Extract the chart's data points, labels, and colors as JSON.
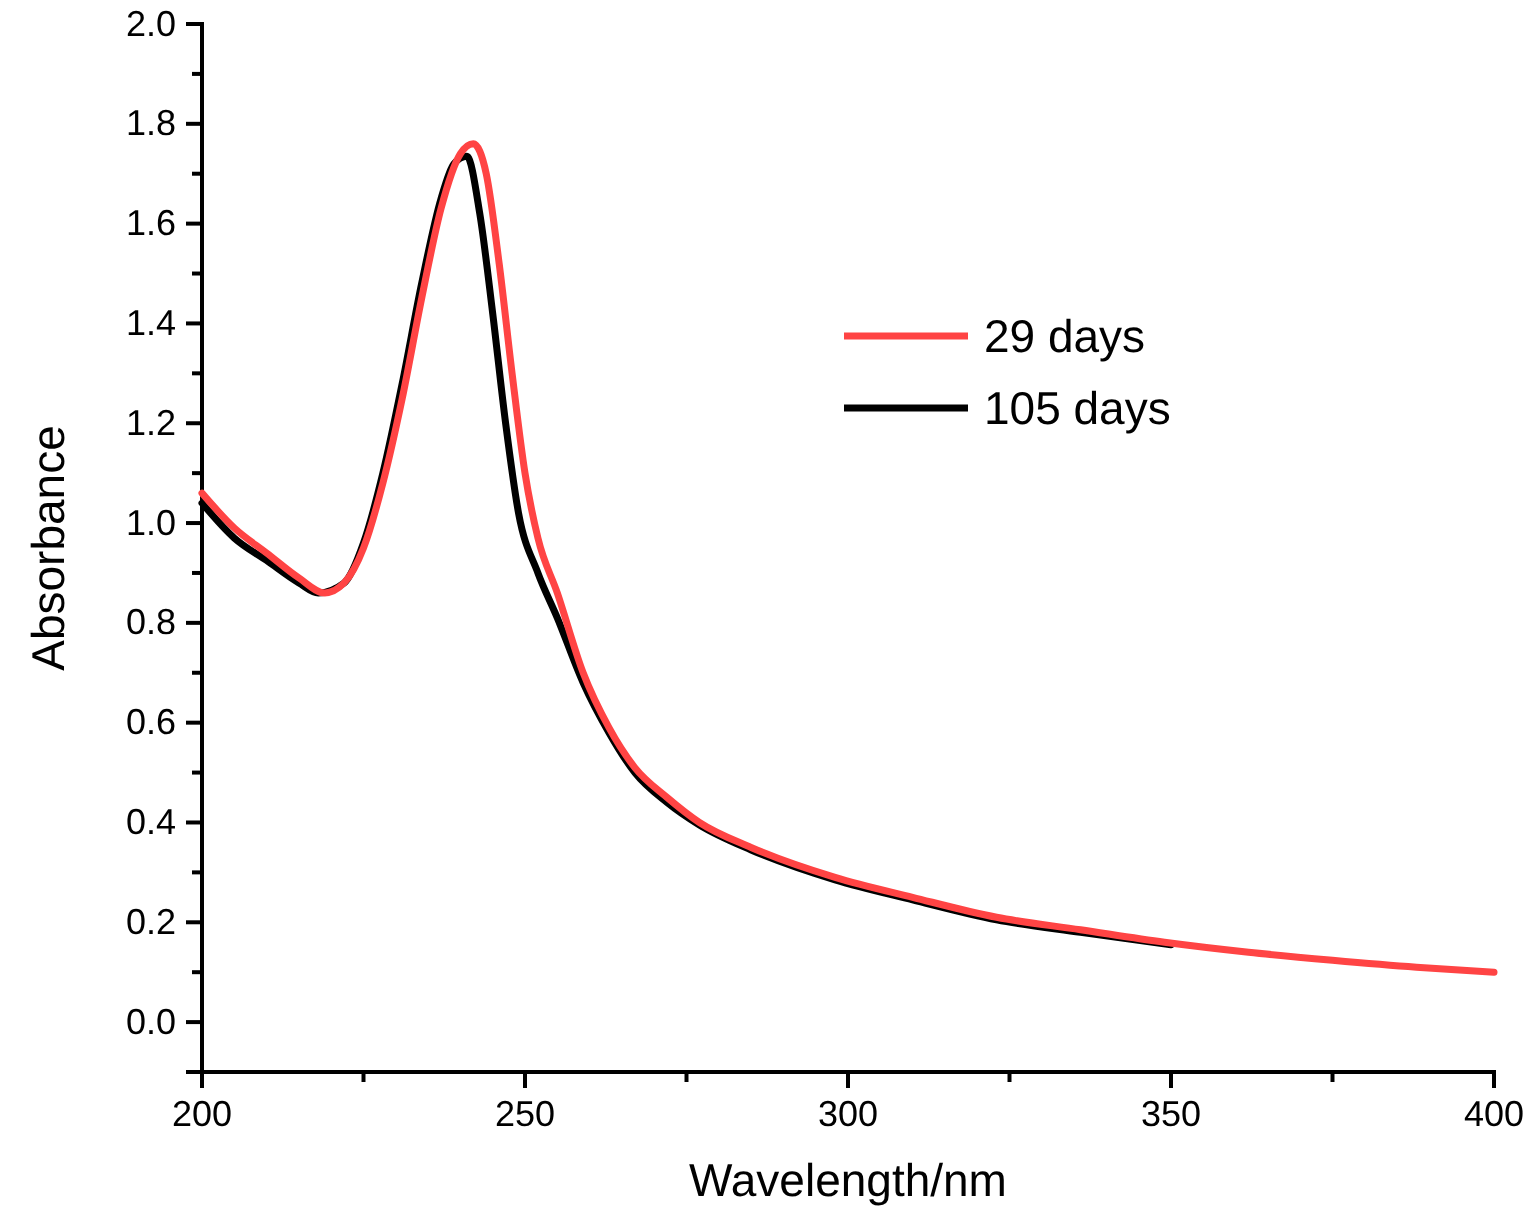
{
  "chart_data": {
    "type": "line",
    "xlabel": "Wavelength/nm",
    "ylabel": "Absorbance",
    "xlim": [
      200,
      400
    ],
    "ylim": [
      -0.1,
      2.0
    ],
    "xticks": [
      200,
      {
        "value": 225,
        "label": null
      },
      250,
      {
        "value": 275,
        "label": null
      },
      300,
      {
        "value": 325,
        "label": null
      },
      350,
      {
        "value": 375,
        "label": null
      },
      400
    ],
    "yticks": [
      {
        "value": 0,
        "label": "0.0"
      },
      {
        "value": 0.1,
        "label": null
      },
      0.2,
      {
        "value": 0.3,
        "label": null
      },
      0.4,
      {
        "value": 0.5,
        "label": null
      },
      0.6,
      {
        "value": 0.7,
        "label": null
      },
      0.8,
      {
        "value": 0.9,
        "label": null
      },
      {
        "value": 1,
        "label": "1.0"
      },
      {
        "value": 1.1,
        "label": null
      },
      1.2,
      {
        "value": 1.3,
        "label": null
      },
      1.4,
      {
        "value": 1.5,
        "label": null
      },
      1.6,
      {
        "value": 1.7,
        "label": null
      },
      1.8,
      {
        "value": 1.9,
        "label": null
      },
      {
        "value": 2,
        "label": "2.0"
      }
    ],
    "grid": false,
    "legend": "top right",
    "marker": "none",
    "line_style": "solid",
    "series": [
      {
        "name": "29 days",
        "color": "#ff4444",
        "x": [
          200,
          205,
          210,
          215,
          219,
          222,
          225,
          228,
          231,
          234,
          237,
          240,
          242,
          244,
          246,
          248,
          250,
          252,
          255,
          259,
          263,
          267,
          272,
          277,
          285,
          298,
          310,
          323,
          336,
          349,
          362,
          375,
          388,
          400
        ],
        "values": [
          1.06,
          0.99,
          0.94,
          0.89,
          0.86,
          0.88,
          0.95,
          1.08,
          1.25,
          1.45,
          1.63,
          1.74,
          1.76,
          1.7,
          1.52,
          1.3,
          1.1,
          0.97,
          0.86,
          0.7,
          0.59,
          0.51,
          0.45,
          0.4,
          0.35,
          0.29,
          0.25,
          0.21,
          0.185,
          0.16,
          0.14,
          0.124,
          0.11,
          0.1
        ]
      },
      {
        "name": "105 days",
        "color": "#000000",
        "x": [
          200,
          205,
          210,
          215,
          218,
          222,
          225,
          228,
          231,
          234,
          237,
          239,
          241,
          243,
          245,
          247,
          249,
          252,
          255,
          259,
          263,
          267,
          272,
          277,
          285,
          298,
          310,
          323,
          336,
          350
        ],
        "values": [
          1.04,
          0.97,
          0.925,
          0.88,
          0.86,
          0.88,
          0.96,
          1.1,
          1.28,
          1.48,
          1.65,
          1.72,
          1.735,
          1.62,
          1.42,
          1.2,
          1.02,
          0.9,
          0.81,
          0.68,
          0.58,
          0.5,
          0.44,
          0.395,
          0.345,
          0.285,
          0.245,
          0.205,
          0.18,
          0.155
        ]
      }
    ]
  }
}
